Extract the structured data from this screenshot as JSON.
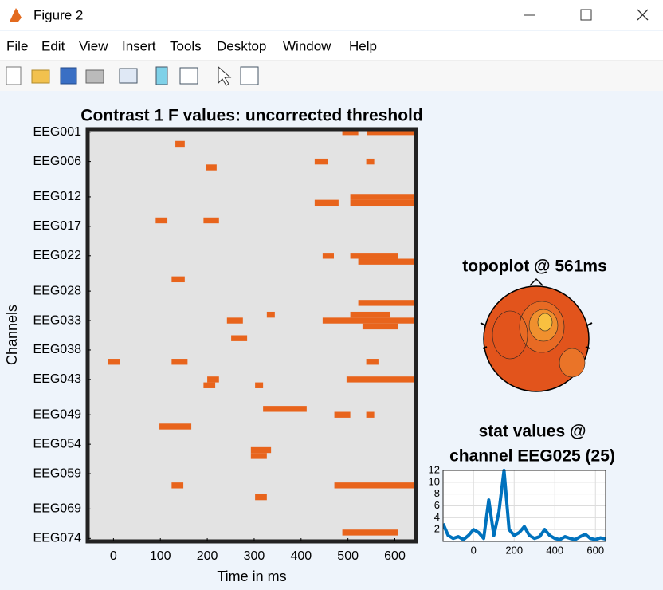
{
  "window": {
    "title": "Figure 2",
    "menu": [
      "File",
      "Edit",
      "View",
      "Insert",
      "Tools",
      "Desktop",
      "Window",
      "Help"
    ]
  },
  "chart_data": [
    {
      "type": "heatmap",
      "title": "Contrast 1 F values: uncorrected threshold",
      "xlabel": "Time in ms",
      "ylabel": "Channels",
      "xlim": [
        -55,
        645
      ],
      "xticks": [
        0,
        100,
        200,
        300,
        400,
        500,
        600
      ],
      "ylim": [
        0.5,
        70.5
      ],
      "y_reversed": true,
      "yticks": [
        {
          "value": 1,
          "label": "EEG001"
        },
        {
          "value": 6,
          "label": "EEG006"
        },
        {
          "value": 12,
          "label": "EEG012"
        },
        {
          "value": 17,
          "label": "EEG017"
        },
        {
          "value": 22,
          "label": "EEG022"
        },
        {
          "value": 28,
          "label": "EEG028"
        },
        {
          "value": 33,
          "label": "EEG033"
        },
        {
          "value": 38,
          "label": "EEG038"
        },
        {
          "value": 43,
          "label": "EEG043"
        },
        {
          "value": 49,
          "label": "EEG049"
        },
        {
          "value": 54,
          "label": "EEG054"
        },
        {
          "value": 59,
          "label": "EEG059"
        },
        {
          "value": 65,
          "label": "EEG069"
        },
        {
          "value": 70,
          "label": "EEG074"
        }
      ],
      "color": "#e8641c",
      "segments": [
        [
          1,
          488,
          522
        ],
        [
          1,
          540,
          640
        ],
        [
          3,
          132,
          152
        ],
        [
          6,
          429,
          458
        ],
        [
          6,
          539,
          556
        ],
        [
          7,
          197,
          220
        ],
        [
          12,
          505,
          640
        ],
        [
          13,
          429,
          480
        ],
        [
          13,
          505,
          640
        ],
        [
          16,
          90,
          115
        ],
        [
          16,
          192,
          225
        ],
        [
          22,
          505,
          607
        ],
        [
          22,
          446,
          470
        ],
        [
          23,
          522,
          640
        ],
        [
          26,
          124,
          152
        ],
        [
          30,
          522,
          640
        ],
        [
          32,
          327,
          344
        ],
        [
          32,
          505,
          590
        ],
        [
          33,
          242,
          276
        ],
        [
          33,
          446,
          640
        ],
        [
          34,
          531,
          607
        ],
        [
          36,
          251,
          285
        ],
        [
          40,
          -12,
          14
        ],
        [
          40,
          124,
          158
        ],
        [
          40,
          539,
          565
        ],
        [
          43,
          200,
          225
        ],
        [
          43,
          497,
          640
        ],
        [
          44,
          302,
          319
        ],
        [
          44,
          192,
          217
        ],
        [
          48,
          319,
          412
        ],
        [
          49,
          471,
          505
        ],
        [
          49,
          539,
          556
        ],
        [
          51,
          98,
          166
        ],
        [
          55,
          293,
          336
        ],
        [
          56,
          293,
          327
        ],
        [
          61,
          471,
          640
        ],
        [
          61,
          124,
          149
        ],
        [
          63,
          302,
          327
        ],
        [
          69,
          488,
          607
        ]
      ]
    },
    {
      "type": "topoplot",
      "title": "topoplot @ 561ms"
    },
    {
      "type": "line",
      "title": [
        "stat values @",
        "channel EEG025 (25)"
      ],
      "xlim": [
        -150,
        650
      ],
      "xticks": [
        0,
        200,
        400,
        600
      ],
      "ylim": [
        0,
        12
      ],
      "yticks": [
        2,
        4,
        6,
        8,
        10,
        12
      ],
      "grid": true,
      "color": "#0072bd",
      "x": [
        -150,
        -125,
        -100,
        -75,
        -50,
        -25,
        0,
        25,
        50,
        75,
        100,
        125,
        150,
        175,
        200,
        225,
        250,
        275,
        300,
        325,
        350,
        375,
        400,
        425,
        450,
        475,
        500,
        525,
        550,
        575,
        600,
        625,
        650
      ],
      "values": [
        3,
        1,
        0.5,
        0.8,
        0.3,
        1,
        2,
        1.5,
        0.5,
        7,
        1,
        5,
        12,
        2,
        1,
        1.5,
        2.5,
        1,
        0.5,
        0.8,
        2,
        1,
        0.5,
        0.3,
        0.8,
        0.5,
        0.3,
        0.8,
        1.2,
        0.5,
        0.3,
        0.6,
        0.4
      ]
    }
  ]
}
